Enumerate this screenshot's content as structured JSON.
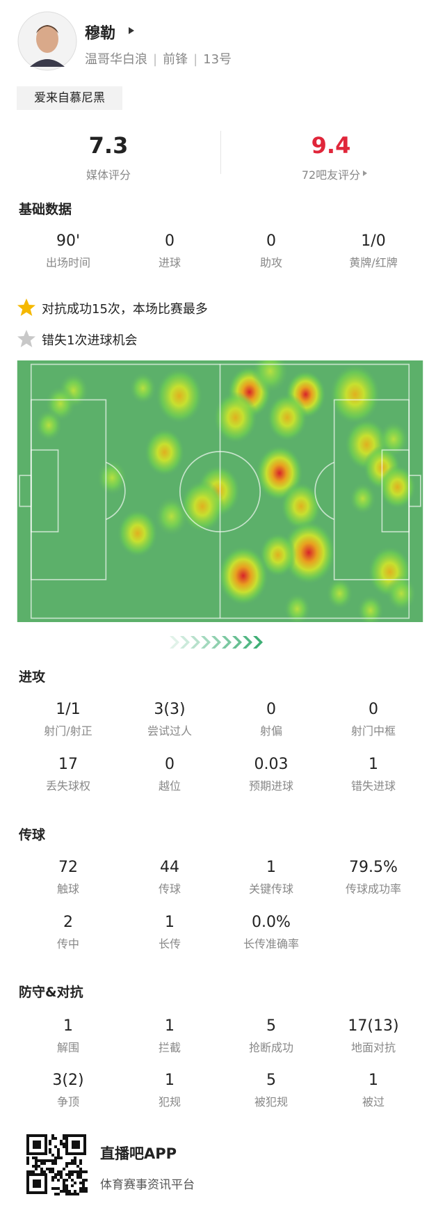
{
  "header": {
    "name": "穆勒",
    "team": "温哥华白浪",
    "position": "前锋",
    "number": "13号",
    "tag": "爱来自慕尼黑"
  },
  "ratings": {
    "media": {
      "value": "7.3",
      "label": "媒体评分"
    },
    "fans": {
      "value": "9.4",
      "label": "72吧友评分"
    }
  },
  "basic": {
    "title": "基础数据",
    "stats": [
      {
        "value": "90'",
        "label": "出场时间"
      },
      {
        "value": "0",
        "label": "进球"
      },
      {
        "value": "0",
        "label": "助攻"
      },
      {
        "value": "1/0",
        "label": "黄牌/红牌"
      }
    ]
  },
  "highlights": [
    "对抗成功15次，本场比赛最多",
    "错失1次进球机会"
  ],
  "attack": {
    "title": "进攻",
    "stats": [
      {
        "value": "1/1",
        "label": "射门/射正"
      },
      {
        "value": "3(3)",
        "label": "尝试过人"
      },
      {
        "value": "0",
        "label": "射偏"
      },
      {
        "value": "0",
        "label": "射门中框"
      },
      {
        "value": "17",
        "label": "丢失球权"
      },
      {
        "value": "0",
        "label": "越位"
      },
      {
        "value": "0.03",
        "label": "预期进球"
      },
      {
        "value": "1",
        "label": "错失进球"
      }
    ]
  },
  "passing": {
    "title": "传球",
    "stats": [
      {
        "value": "72",
        "label": "触球"
      },
      {
        "value": "44",
        "label": "传球"
      },
      {
        "value": "1",
        "label": "关键传球"
      },
      {
        "value": "79.5%",
        "label": "传球成功率"
      },
      {
        "value": "2",
        "label": "传中"
      },
      {
        "value": "1",
        "label": "长传"
      },
      {
        "value": "0.0%",
        "label": "长传准确率"
      }
    ]
  },
  "defense": {
    "title": "防守&对抗",
    "stats": [
      {
        "value": "1",
        "label": "解围"
      },
      {
        "value": "1",
        "label": "拦截"
      },
      {
        "value": "5",
        "label": "抢断成功"
      },
      {
        "value": "17(13)",
        "label": "地面对抗"
      },
      {
        "value": "3(2)",
        "label": "争顶"
      },
      {
        "value": "1",
        "label": "犯规"
      },
      {
        "value": "5",
        "label": "被犯规"
      },
      {
        "value": "1",
        "label": "被过"
      }
    ]
  },
  "footer": {
    "app": "直播吧APP",
    "slogan": "体育赛事资讯平台"
  }
}
